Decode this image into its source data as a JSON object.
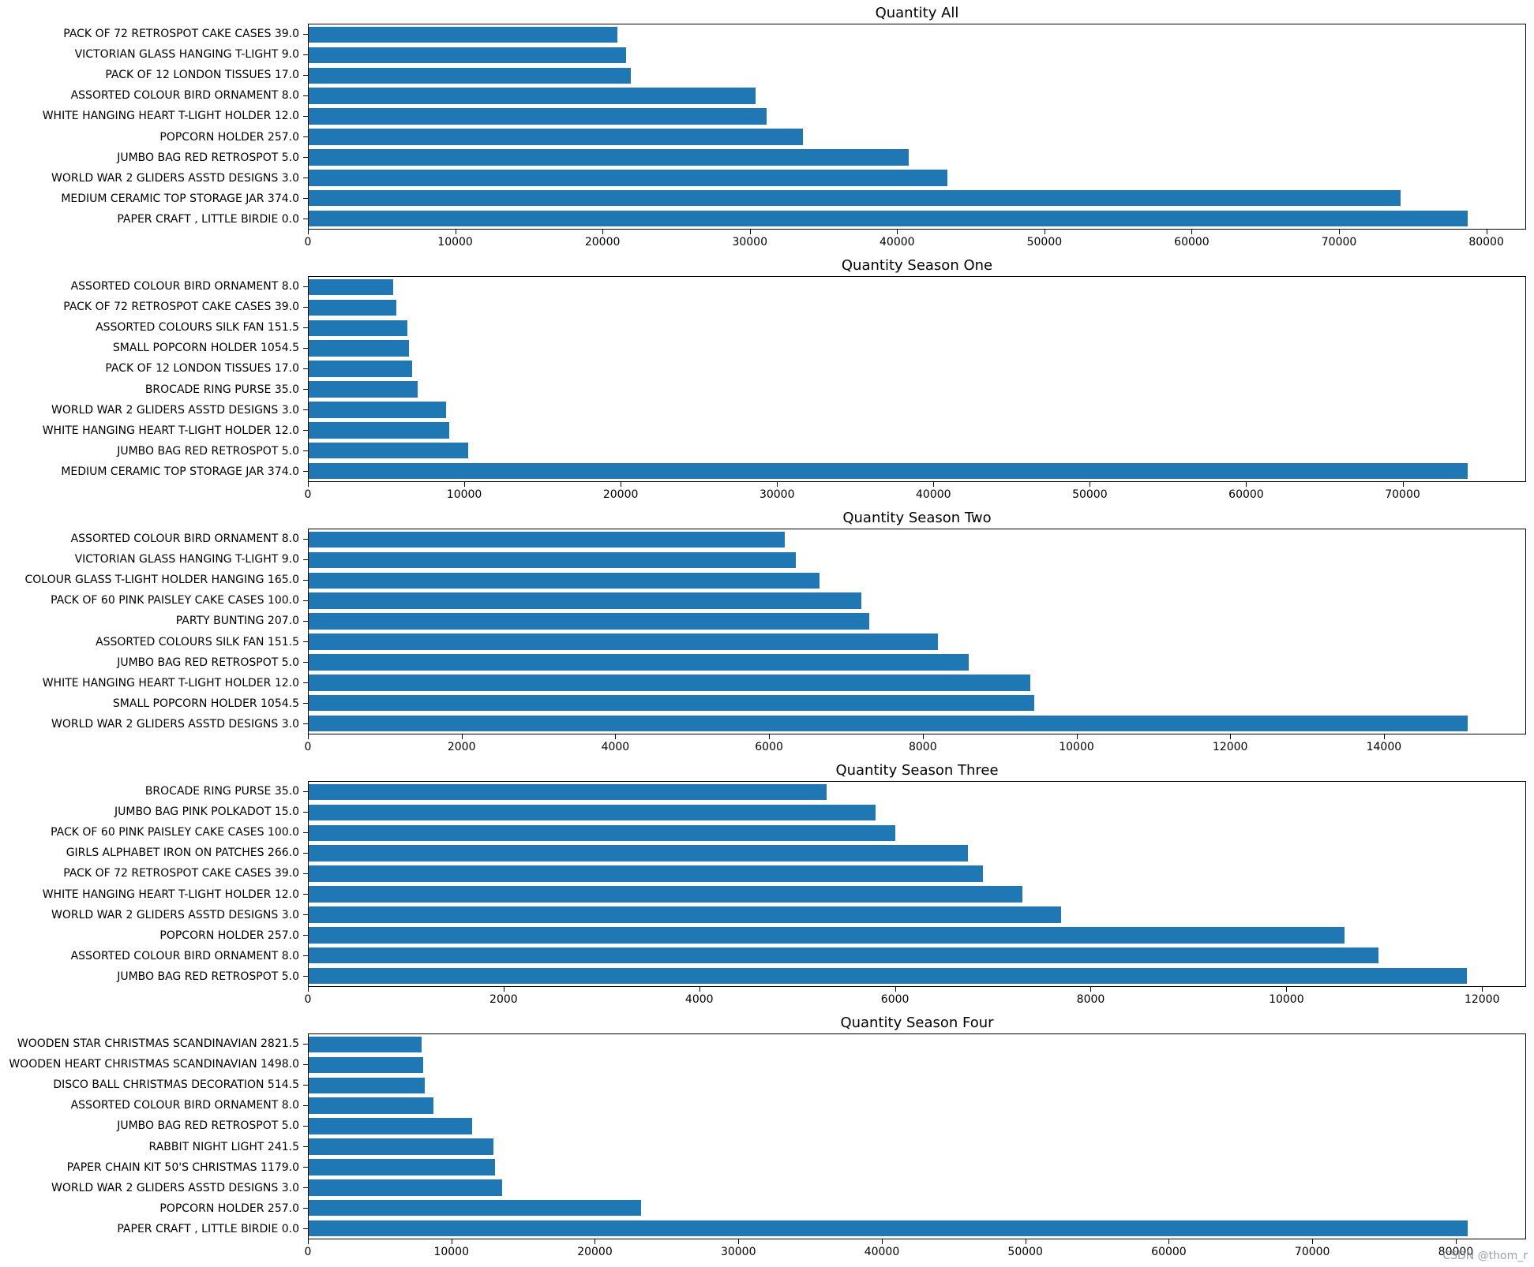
{
  "watermark": "CSDN @thom_r",
  "colors": {
    "bar": "#1f77b4",
    "axis": "#000000",
    "text": "#000000"
  },
  "chart_data": [
    {
      "type": "bar",
      "orientation": "horizontal",
      "title": "Quantity All",
      "xlabel": "",
      "ylabel": "",
      "grid": false,
      "legend": "none",
      "categories": [
        "PACK OF 72 RETROSPOT CAKE CASES 39.0",
        "VICTORIAN GLASS HANGING T-LIGHT 9.0",
        "PACK OF 12 LONDON TISSUES 17.0",
        "ASSORTED COLOUR BIRD ORNAMENT 8.0",
        "WHITE HANGING HEART T-LIGHT HOLDER 12.0",
        "POPCORN HOLDER 257.0",
        "JUMBO BAG RED RETROSPOT 5.0",
        "WORLD WAR 2 GLIDERS ASSTD DESIGNS 3.0",
        "MEDIUM CERAMIC TOP STORAGE JAR 374.0",
        "PAPER CRAFT , LITTLE BIRDIE 0.0"
      ],
      "values": [
        21000,
        21600,
        21900,
        30400,
        31100,
        33600,
        40800,
        43400,
        74200,
        78800
      ],
      "xlim": [
        0,
        82700
      ],
      "xticks": [
        0,
        10000,
        20000,
        30000,
        40000,
        50000,
        60000,
        70000,
        80000
      ]
    },
    {
      "type": "bar",
      "orientation": "horizontal",
      "title": "Quantity Season One",
      "xlabel": "",
      "ylabel": "",
      "grid": false,
      "legend": "none",
      "categories": [
        "ASSORTED COLOUR BIRD ORNAMENT 8.0",
        "PACK OF 72 RETROSPOT CAKE CASES 39.0",
        "ASSORTED COLOURS SILK FAN 151.5",
        "SMALL POPCORN HOLDER 1054.5",
        "PACK OF 12 LONDON TISSUES 17.0",
        "BROCADE RING PURSE 35.0",
        "WORLD WAR 2 GLIDERS ASSTD DESIGNS 3.0",
        "WHITE HANGING HEART T-LIGHT HOLDER 12.0",
        "JUMBO BAG RED RETROSPOT 5.0",
        "MEDIUM CERAMIC TOP STORAGE JAR 374.0"
      ],
      "values": [
        5400,
        5600,
        6300,
        6400,
        6600,
        7000,
        8800,
        9000,
        10200,
        74200
      ],
      "xlim": [
        0,
        77900
      ],
      "xticks": [
        0,
        10000,
        20000,
        30000,
        40000,
        50000,
        60000,
        70000
      ]
    },
    {
      "type": "bar",
      "orientation": "horizontal",
      "title": "Quantity Season Two",
      "xlabel": "",
      "ylabel": "",
      "grid": false,
      "legend": "none",
      "categories": [
        "ASSORTED COLOUR BIRD ORNAMENT 8.0",
        "VICTORIAN GLASS HANGING T-LIGHT 9.0",
        "COLOUR GLASS T-LIGHT HOLDER HANGING 165.0",
        "PACK OF 60 PINK PAISLEY CAKE CASES 100.0",
        "PARTY BUNTING 207.0",
        "ASSORTED COLOURS SILK FAN 151.5",
        "JUMBO BAG RED RETROSPOT 5.0",
        "WHITE HANGING HEART T-LIGHT HOLDER 12.0",
        "SMALL POPCORN HOLDER 1054.5",
        "WORLD WAR 2 GLIDERS ASSTD DESIGNS 3.0"
      ],
      "values": [
        6200,
        6350,
        6650,
        7200,
        7300,
        8200,
        8600,
        9400,
        9450,
        15100
      ],
      "xlim": [
        0,
        15850
      ],
      "xticks": [
        0,
        2000,
        4000,
        6000,
        8000,
        10000,
        12000,
        14000
      ]
    },
    {
      "type": "bar",
      "orientation": "horizontal",
      "title": "Quantity Season Three",
      "xlabel": "",
      "ylabel": "",
      "grid": false,
      "legend": "none",
      "categories": [
        "BROCADE RING PURSE 35.0",
        "JUMBO BAG PINK POLKADOT 15.0",
        "PACK OF 60 PINK PAISLEY CAKE CASES 100.0",
        "GIRLS ALPHABET IRON ON PATCHES 266.0",
        "PACK OF 72 RETROSPOT CAKE CASES 39.0",
        "WHITE HANGING HEART T-LIGHT HOLDER 12.0",
        "WORLD WAR 2 GLIDERS ASSTD DESIGNS 3.0",
        "POPCORN HOLDER 257.0",
        "ASSORTED COLOUR BIRD ORNAMENT 8.0",
        "JUMBO BAG RED RETROSPOT 5.0"
      ],
      "values": [
        5300,
        5800,
        6000,
        6750,
        6900,
        7300,
        7700,
        10600,
        10950,
        11850
      ],
      "xlim": [
        0,
        12450
      ],
      "xticks": [
        0,
        2000,
        4000,
        6000,
        8000,
        10000,
        12000
      ]
    },
    {
      "type": "bar",
      "orientation": "horizontal",
      "title": "Quantity Season Four",
      "xlabel": "",
      "ylabel": "",
      "grid": false,
      "legend": "none",
      "categories": [
        "WOODEN STAR CHRISTMAS SCANDINAVIAN 2821.5",
        "WOODEN HEART CHRISTMAS SCANDINAVIAN 1498.0",
        "DISCO BALL CHRISTMAS DECORATION 514.5",
        "ASSORTED COLOUR BIRD ORNAMENT 8.0",
        "JUMBO BAG RED RETROSPOT 5.0",
        "RABBIT NIGHT LIGHT 241.5",
        "PAPER CHAIN KIT 50'S CHRISTMAS 1179.0",
        "WORLD WAR 2 GLIDERS ASSTD DESIGNS 3.0",
        "POPCORN HOLDER 257.0",
        "PAPER CRAFT , LITTLE BIRDIE 0.0"
      ],
      "values": [
        7900,
        8000,
        8100,
        8700,
        11400,
        12900,
        13000,
        13500,
        23200,
        80900
      ],
      "xlim": [
        0,
        84900
      ],
      "xticks": [
        0,
        10000,
        20000,
        30000,
        40000,
        50000,
        60000,
        70000,
        80000
      ]
    }
  ]
}
